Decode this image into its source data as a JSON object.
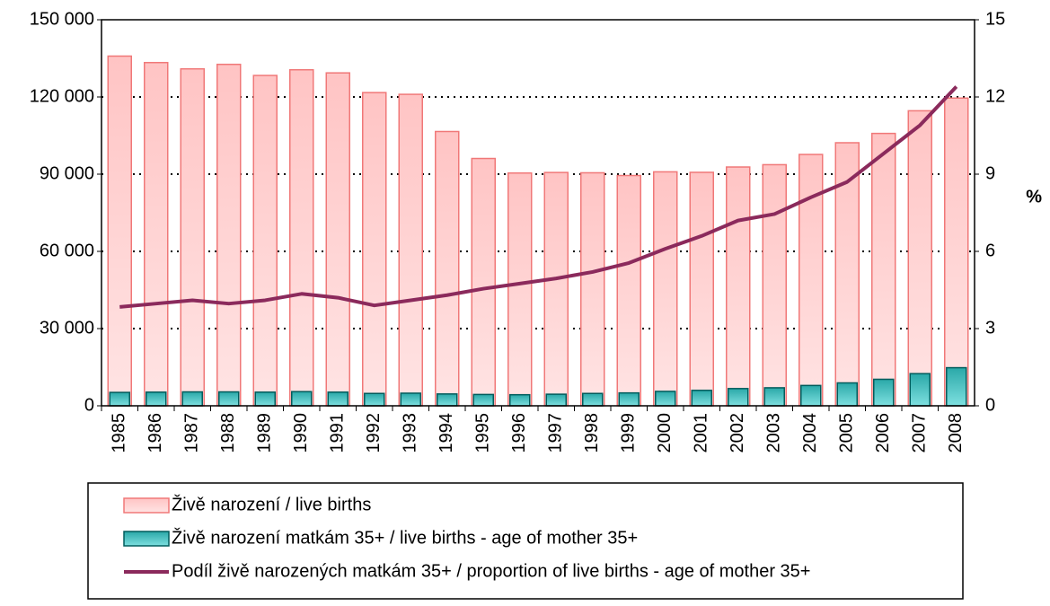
{
  "chart_data": {
    "type": "bar-line",
    "categories": [
      "1985",
      "1986",
      "1987",
      "1988",
      "1989",
      "1990",
      "1991",
      "1992",
      "1993",
      "1994",
      "1995",
      "1996",
      "1997",
      "1998",
      "1999",
      "2000",
      "2001",
      "2002",
      "2003",
      "2004",
      "2005",
      "2006",
      "2007",
      "2008"
    ],
    "series": [
      {
        "name": "Živě narození / live births",
        "type": "bar",
        "color": "#ffc8c8",
        "stroke": "#f07878",
        "values": [
          135881,
          133356,
          130921,
          132667,
          128356,
          130564,
          129354,
          121705,
          121025,
          106579,
          96097,
          90446,
          90657,
          90535,
          89471,
          90910,
          90715,
          92786,
          93685,
          97664,
          102211,
          105831,
          114632,
          119570
        ]
      },
      {
        "name": "Živě narození matkám 35+ / live births - age of mother 35+",
        "type": "bar",
        "color": "#3cbcbc",
        "stroke": "#005c5c",
        "values": [
          5200,
          5300,
          5400,
          5400,
          5300,
          5500,
          5300,
          4800,
          4900,
          4600,
          4400,
          4300,
          4500,
          4800,
          5000,
          5600,
          6000,
          6700,
          7000,
          7900,
          8900,
          10300,
          12500,
          14800
        ]
      },
      {
        "name": "Podíl živě narozených matkám 35+ / proportion of live births - age of mother 35+",
        "type": "line",
        "axis": "y2",
        "color": "#8b2a5c",
        "values": [
          3.84,
          3.97,
          4.1,
          3.97,
          4.1,
          4.35,
          4.2,
          3.9,
          4.1,
          4.3,
          4.55,
          4.75,
          4.95,
          5.2,
          5.55,
          6.1,
          6.6,
          7.2,
          7.45,
          8.1,
          8.7,
          9.8,
          10.9,
          12.4
        ]
      }
    ],
    "ylim": [
      0,
      150000
    ],
    "yticks": [
      {
        "value": 0,
        "label": "0"
      },
      {
        "value": 30000,
        "label": "30 000"
      },
      {
        "value": 60000,
        "label": "60 000"
      },
      {
        "value": 90000,
        "label": "90 000"
      },
      {
        "value": 120000,
        "label": "120 000"
      },
      {
        "value": 150000,
        "label": "150 000"
      }
    ],
    "y2lim": [
      0,
      15
    ],
    "y2ticks": [
      0,
      3,
      6,
      9,
      12,
      15
    ],
    "y2label": "%",
    "grid": true
  }
}
